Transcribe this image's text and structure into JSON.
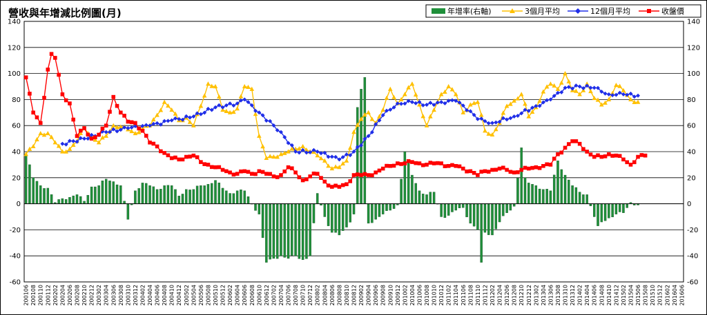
{
  "chart_data": {
    "type": "bar+line",
    "title": "營收與年增減比例圖(月)",
    "y_left": {
      "ylim": [
        -60,
        140
      ],
      "ticks": [
        "-60",
        "-40",
        "-20",
        "0",
        "20",
        "40",
        "60",
        "80",
        "100",
        "120",
        "140"
      ]
    },
    "y_right": {
      "ylim": [
        -60,
        140
      ],
      "ticks": [
        "-60",
        "-40",
        "-20",
        "0",
        "20",
        "40",
        "60",
        "80",
        "100",
        "120",
        "140"
      ]
    },
    "grid": true,
    "legend_position": "top-right",
    "series_meta": [
      {
        "name": "年增率(右軸)",
        "type": "bar",
        "color": "#1f8f3a",
        "axis": "right"
      },
      {
        "name": "3個月平均",
        "type": "line",
        "color": "#ffc000",
        "marker": "triangle"
      },
      {
        "name": "12個月平均",
        "type": "line",
        "color": "#1f2ee8",
        "marker": "diamond"
      },
      {
        "name": "收盤價",
        "type": "line",
        "color": "#ff0000",
        "marker": "square"
      }
    ],
    "x_tick_labels": [
      "200106",
      "200108",
      "200110",
      "200112",
      "200202",
      "200204",
      "200206",
      "200208",
      "200210",
      "200212",
      "200302",
      "200304",
      "200306",
      "200308",
      "200310",
      "200312",
      "200402",
      "200404",
      "200406",
      "200408",
      "200410",
      "200412",
      "200502",
      "200504",
      "200506",
      "200508",
      "200510",
      "200512",
      "200602",
      "200604",
      "200606",
      "200608",
      "200610",
      "200612",
      "200702",
      "200704",
      "200706",
      "200708",
      "200710",
      "200712",
      "200802",
      "200804",
      "200806",
      "200808",
      "200810",
      "200812",
      "200902",
      "200904",
      "200906",
      "200908",
      "200910",
      "200912",
      "201002",
      "201004",
      "201006",
      "201008",
      "201010",
      "201012",
      "201102",
      "201104",
      "201106",
      "201108",
      "201110",
      "201112",
      "201202",
      "201204",
      "201206",
      "201208",
      "201210",
      "201212",
      "201302",
      "201304",
      "201306",
      "201308",
      "201310",
      "201312",
      "201402",
      "201404",
      "201406",
      "201408",
      "201410",
      "201412",
      "201502",
      "201504",
      "201506",
      "201508",
      "201510",
      "201512",
      "201602",
      "201604",
      "201606"
    ],
    "anchors": {
      "yoy": [
        [
          0,
          38
        ],
        [
          2,
          20
        ],
        [
          4,
          14
        ],
        [
          6,
          12
        ],
        [
          8,
          1
        ],
        [
          10,
          4
        ],
        [
          12,
          5
        ],
        [
          14,
          7
        ],
        [
          16,
          2
        ],
        [
          18,
          13
        ],
        [
          20,
          14
        ],
        [
          22,
          19
        ],
        [
          24,
          17
        ],
        [
          26,
          14
        ],
        [
          28,
          -12
        ],
        [
          30,
          10
        ],
        [
          32,
          16
        ],
        [
          34,
          14
        ],
        [
          36,
          11
        ],
        [
          38,
          14
        ],
        [
          40,
          14
        ],
        [
          42,
          6
        ],
        [
          44,
          11
        ],
        [
          46,
          11
        ],
        [
          48,
          14
        ],
        [
          50,
          15
        ],
        [
          52,
          18
        ],
        [
          54,
          12
        ],
        [
          56,
          8
        ],
        [
          58,
          10
        ],
        [
          60,
          10
        ],
        [
          62,
          0
        ],
        [
          64,
          -8
        ],
        [
          66,
          -45
        ],
        [
          68,
          -42
        ],
        [
          70,
          -40
        ],
        [
          72,
          -42
        ],
        [
          74,
          -40
        ],
        [
          76,
          -43
        ],
        [
          78,
          -40
        ],
        [
          80,
          8
        ],
        [
          82,
          -10
        ],
        [
          84,
          -22
        ],
        [
          86,
          -24
        ],
        [
          88,
          -18
        ],
        [
          90,
          -8
        ],
        [
          91,
          74
        ],
        [
          92,
          88
        ],
        [
          93,
          97
        ],
        [
          94,
          -15
        ],
        [
          96,
          -12
        ],
        [
          98,
          -8
        ],
        [
          100,
          -5
        ],
        [
          102,
          -1
        ],
        [
          104,
          40
        ],
        [
          106,
          22
        ],
        [
          108,
          10
        ],
        [
          110,
          7
        ],
        [
          112,
          9
        ],
        [
          114,
          -10
        ],
        [
          116,
          -9
        ],
        [
          118,
          -5
        ],
        [
          120,
          -3
        ],
        [
          122,
          -15
        ],
        [
          124,
          -20
        ],
        [
          125,
          -45
        ],
        [
          126,
          -22
        ],
        [
          128,
          -24
        ],
        [
          130,
          -14
        ],
        [
          132,
          -7
        ],
        [
          134,
          -2
        ],
        [
          136,
          43
        ],
        [
          137,
          20
        ],
        [
          138,
          16
        ],
        [
          140,
          14
        ],
        [
          142,
          11
        ],
        [
          144,
          10
        ],
        [
          146,
          33
        ],
        [
          148,
          22
        ],
        [
          150,
          14
        ],
        [
          152,
          9
        ],
        [
          154,
          7
        ],
        [
          156,
          -10
        ],
        [
          157,
          -17
        ],
        [
          158,
          -14
        ],
        [
          160,
          -11
        ],
        [
          162,
          -8
        ],
        [
          164,
          -7
        ],
        [
          166,
          1
        ],
        [
          168,
          -1
        ]
      ],
      "ma3": [
        [
          0,
          38
        ],
        [
          2,
          44
        ],
        [
          4,
          54
        ],
        [
          6,
          54
        ],
        [
          8,
          47
        ],
        [
          10,
          40
        ],
        [
          12,
          42
        ],
        [
          14,
          48
        ],
        [
          16,
          58
        ],
        [
          18,
          52
        ],
        [
          20,
          47
        ],
        [
          22,
          52
        ],
        [
          24,
          60
        ],
        [
          26,
          59
        ],
        [
          28,
          57
        ],
        [
          30,
          54
        ],
        [
          32,
          58
        ],
        [
          34,
          60
        ],
        [
          36,
          68
        ],
        [
          38,
          78
        ],
        [
          40,
          72
        ],
        [
          42,
          64
        ],
        [
          44,
          66
        ],
        [
          46,
          60
        ],
        [
          48,
          75
        ],
        [
          50,
          92
        ],
        [
          52,
          90
        ],
        [
          54,
          72
        ],
        [
          56,
          70
        ],
        [
          58,
          73
        ],
        [
          60,
          90
        ],
        [
          62,
          88
        ],
        [
          64,
          52
        ],
        [
          66,
          35
        ],
        [
          68,
          36
        ],
        [
          70,
          38
        ],
        [
          72,
          40
        ],
        [
          74,
          42
        ],
        [
          76,
          44
        ],
        [
          78,
          40
        ],
        [
          80,
          37
        ],
        [
          82,
          33
        ],
        [
          84,
          27
        ],
        [
          86,
          28
        ],
        [
          88,
          33
        ],
        [
          90,
          55
        ],
        [
          92,
          65
        ],
        [
          94,
          70
        ],
        [
          96,
          62
        ],
        [
          98,
          72
        ],
        [
          100,
          88
        ],
        [
          102,
          77
        ],
        [
          104,
          84
        ],
        [
          106,
          92
        ],
        [
          108,
          76
        ],
        [
          110,
          60
        ],
        [
          112,
          72
        ],
        [
          114,
          84
        ],
        [
          116,
          90
        ],
        [
          118,
          84
        ],
        [
          120,
          70
        ],
        [
          122,
          76
        ],
        [
          124,
          78
        ],
        [
          126,
          56
        ],
        [
          128,
          53
        ],
        [
          130,
          62
        ],
        [
          132,
          75
        ],
        [
          134,
          79
        ],
        [
          136,
          84
        ],
        [
          138,
          67
        ],
        [
          140,
          74
        ],
        [
          142,
          86
        ],
        [
          144,
          92
        ],
        [
          146,
          88
        ],
        [
          148,
          100
        ],
        [
          150,
          87
        ],
        [
          152,
          84
        ],
        [
          154,
          92
        ],
        [
          156,
          81
        ],
        [
          158,
          76
        ],
        [
          160,
          80
        ],
        [
          162,
          91
        ],
        [
          164,
          87
        ],
        [
          166,
          80
        ],
        [
          168,
          78
        ]
      ],
      "ma12": [
        [
          10,
          46
        ],
        [
          16,
          50
        ],
        [
          22,
          55
        ],
        [
          28,
          58
        ],
        [
          34,
          60
        ],
        [
          40,
          64
        ],
        [
          46,
          67
        ],
        [
          52,
          74
        ],
        [
          58,
          77
        ],
        [
          60,
          80
        ],
        [
          64,
          70
        ],
        [
          70,
          55
        ],
        [
          74,
          40
        ],
        [
          80,
          40
        ],
        [
          86,
          34
        ],
        [
          90,
          40
        ],
        [
          94,
          52
        ],
        [
          98,
          68
        ],
        [
          102,
          77
        ],
        [
          106,
          78
        ],
        [
          110,
          76
        ],
        [
          114,
          78
        ],
        [
          118,
          79
        ],
        [
          122,
          71
        ],
        [
          124,
          65
        ],
        [
          128,
          62
        ],
        [
          134,
          67
        ],
        [
          140,
          75
        ],
        [
          144,
          80
        ],
        [
          148,
          89
        ],
        [
          152,
          90
        ],
        [
          156,
          89
        ],
        [
          160,
          84
        ],
        [
          164,
          84
        ],
        [
          168,
          83
        ]
      ],
      "close": [
        [
          0,
          97
        ],
        [
          2,
          70
        ],
        [
          4,
          62
        ],
        [
          6,
          103
        ],
        [
          7,
          115
        ],
        [
          8,
          112
        ],
        [
          9,
          99
        ],
        [
          10,
          84
        ],
        [
          12,
          77
        ],
        [
          14,
          52
        ],
        [
          16,
          58
        ],
        [
          18,
          50
        ],
        [
          20,
          53
        ],
        [
          22,
          60
        ],
        [
          24,
          82
        ],
        [
          26,
          70
        ],
        [
          28,
          63
        ],
        [
          30,
          62
        ],
        [
          32,
          56
        ],
        [
          34,
          47
        ],
        [
          36,
          44
        ],
        [
          38,
          39
        ],
        [
          40,
          35
        ],
        [
          42,
          34
        ],
        [
          44,
          36
        ],
        [
          46,
          37
        ],
        [
          48,
          32
        ],
        [
          50,
          30
        ],
        [
          52,
          28
        ],
        [
          54,
          26
        ],
        [
          56,
          24
        ],
        [
          58,
          23
        ],
        [
          60,
          25
        ],
        [
          62,
          23
        ],
        [
          64,
          25
        ],
        [
          66,
          23
        ],
        [
          68,
          21
        ],
        [
          70,
          22
        ],
        [
          72,
          28
        ],
        [
          74,
          24
        ],
        [
          76,
          18
        ],
        [
          78,
          21
        ],
        [
          80,
          23
        ],
        [
          82,
          17
        ],
        [
          84,
          13
        ],
        [
          86,
          13
        ],
        [
          88,
          15
        ],
        [
          90,
          22
        ],
        [
          92,
          22
        ],
        [
          94,
          22
        ],
        [
          96,
          24
        ],
        [
          98,
          27
        ],
        [
          100,
          29
        ],
        [
          102,
          31
        ],
        [
          104,
          31
        ],
        [
          106,
          32
        ],
        [
          108,
          31
        ],
        [
          110,
          30
        ],
        [
          112,
          31
        ],
        [
          114,
          31
        ],
        [
          116,
          29
        ],
        [
          118,
          29
        ],
        [
          120,
          27
        ],
        [
          122,
          25
        ],
        [
          124,
          22
        ],
        [
          126,
          25
        ],
        [
          128,
          26
        ],
        [
          130,
          27
        ],
        [
          132,
          26
        ],
        [
          134,
          24
        ],
        [
          136,
          26
        ],
        [
          138,
          27
        ],
        [
          140,
          28
        ],
        [
          142,
          29
        ],
        [
          144,
          30
        ],
        [
          146,
          38
        ],
        [
          148,
          43
        ],
        [
          150,
          48
        ],
        [
          152,
          46
        ],
        [
          154,
          40
        ],
        [
          156,
          36
        ],
        [
          158,
          36
        ],
        [
          160,
          38
        ],
        [
          162,
          37
        ],
        [
          164,
          34
        ],
        [
          166,
          30
        ],
        [
          168,
          36
        ],
        [
          170,
          37
        ]
      ]
    }
  }
}
